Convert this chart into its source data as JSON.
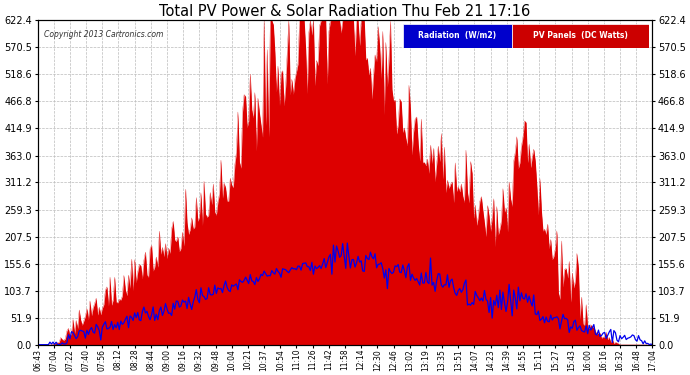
{
  "title": "Total PV Power & Solar Radiation Thu Feb 21 17:16",
  "copyright": "Copyright 2013 Cartronics.com",
  "legend_labels": [
    "Radiation  (W/m2)",
    "PV Panels  (DC Watts)"
  ],
  "ylim": [
    0,
    622.4
  ],
  "yticks": [
    0.0,
    51.9,
    103.7,
    155.6,
    207.5,
    259.3,
    311.2,
    363.0,
    414.9,
    466.8,
    518.6,
    570.5,
    622.4
  ],
  "bg_color": "#ffffff",
  "plot_bg": "#ffffff",
  "grid_color": "#bbbbbb",
  "pv_color": "#dd0000",
  "radiation_color": "#0000ee",
  "n_points": 400,
  "time_labels": [
    "06:43",
    "07:04",
    "07:22",
    "07:40",
    "07:56",
    "08:12",
    "08:28",
    "08:44",
    "09:00",
    "09:16",
    "09:32",
    "09:48",
    "10:04",
    "10:21",
    "10:37",
    "10:54",
    "11:10",
    "11:26",
    "11:42",
    "11:58",
    "12:14",
    "12:30",
    "12:46",
    "13:02",
    "13:19",
    "13:35",
    "13:51",
    "14:07",
    "14:23",
    "14:39",
    "14:55",
    "15:11",
    "15:27",
    "15:43",
    "16:00",
    "16:16",
    "16:32",
    "16:48",
    "17:04"
  ]
}
